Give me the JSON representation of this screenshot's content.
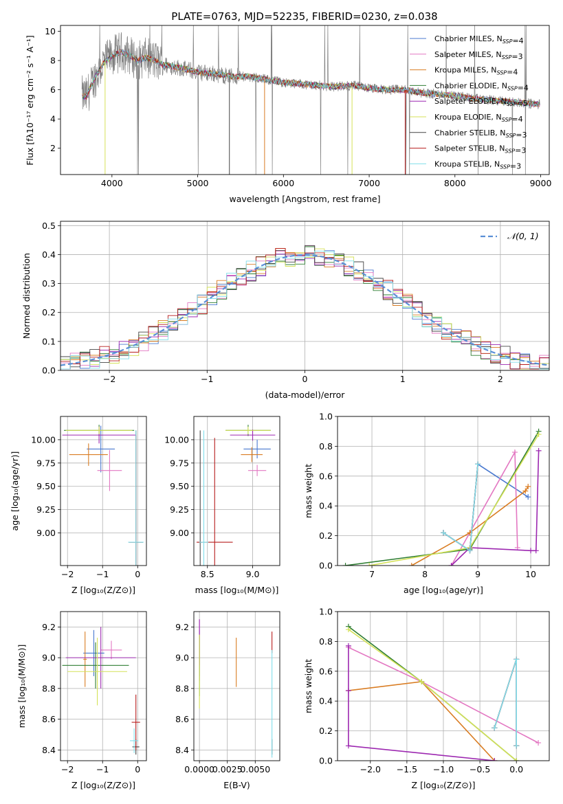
{
  "title": "PLATE=0763, MJD=52235, FIBERID=0230, z=0.038",
  "series": [
    {
      "name": "Chabrier MILES, N$_{SSP}$=4",
      "color": "#4878cf"
    },
    {
      "name": "Salpeter MILES, N$_{SSP}$=3",
      "color": "#e377c2"
    },
    {
      "name": "Kroupa MILES, N$_{SSP}$=4",
      "color": "#d97c22"
    },
    {
      "name": "Chabrier ELODIE, N$_{SSP}$=4",
      "color": "#2e7d32"
    },
    {
      "name": "Salpeter ELODIE, N$_{SSP}$=5",
      "color": "#9c27b0"
    },
    {
      "name": "Kroupa ELODIE, N$_{SSP}$=4",
      "color": "#d4e157"
    },
    {
      "name": "Chabrier STELIB, N$_{SSP}$=3",
      "color": "#444444"
    },
    {
      "name": "Salpeter STELIB, N$_{SSP}$=3",
      "color": "#b71c1c"
    },
    {
      "name": "Kroupa STELIB, N$_{SSP}$=3",
      "color": "#80deea"
    }
  ],
  "chart_data": [
    {
      "type": "line",
      "title": "PLATE=0763, MJD=52235, FIBERID=0230, z=0.038",
      "xlabel": "wavelength [Angstrom, rest frame]",
      "ylabel": "Flux [f_λ 10^-17 erg cm^-2 s^-1 A^-1]",
      "xlim": [
        3400,
        9100
      ],
      "ylim": [
        0.2,
        10.4
      ],
      "xticks": [
        4000,
        5000,
        6000,
        7000,
        8000,
        9000
      ],
      "yticks": [
        2,
        4,
        6,
        8,
        10
      ],
      "grid": false,
      "legend": "top-right",
      "data_color": "#808080",
      "spectrum_x": [
        3650,
        3700,
        3800,
        3900,
        4000,
        4100,
        4200,
        4300,
        4400,
        4500,
        4600,
        4800,
        5000,
        5200,
        5400,
        5600,
        5800,
        6000,
        6200,
        6400,
        6600,
        6800,
        7000,
        7200,
        7400,
        7600,
        7800,
        8000,
        8200,
        8400,
        8600,
        8800,
        9000
      ],
      "spectrum_y": [
        5.6,
        5.5,
        6.8,
        7.8,
        8.3,
        8.6,
        8.4,
        8.0,
        8.2,
        8.0,
        7.7,
        7.5,
        7.2,
        7.1,
        6.9,
        6.9,
        6.7,
        6.5,
        6.4,
        6.3,
        6.2,
        6.3,
        6.1,
        6.0,
        6.0,
        5.8,
        5.7,
        5.6,
        5.4,
        5.3,
        5.2,
        5.1,
        5.0
      ]
    },
    {
      "type": "line",
      "xlabel": "(data-model)/error",
      "ylabel": "Normed distribution",
      "xlim": [
        -2.5,
        2.5
      ],
      "ylim": [
        0,
        0.515
      ],
      "xticks": [
        -2,
        -1,
        0,
        1,
        2
      ],
      "yticks": [
        0.0,
        0.1,
        0.2,
        0.3,
        0.4,
        0.5
      ],
      "grid": true,
      "legend": "top-right",
      "legend_label": "𝒩(0, 1)",
      "normal_color": "#5a8fd6",
      "bin_width": 0.1
    },
    {
      "type": "scatter",
      "xlabel": "Z [log10(Z/Z⊙)]",
      "ylabel": "age [log10(age/yr)]",
      "xlim": [
        -2.2,
        0.25
      ],
      "ylim": [
        8.65,
        10.25
      ],
      "xticks": [
        -2,
        -1,
        0
      ],
      "yticks": [
        9.0,
        9.25,
        9.5,
        9.75,
        10.0
      ],
      "grid": true,
      "points": [
        {
          "s": 0,
          "x": -1.05,
          "y": 9.9,
          "xe": 0.4,
          "ye": 0.25
        },
        {
          "s": 1,
          "x": -0.8,
          "y": 9.67,
          "xe": 0.35,
          "ye": 0.22
        },
        {
          "s": 2,
          "x": -1.4,
          "y": 9.84,
          "xe": 0.55,
          "ye": 0.12
        },
        {
          "s": 3,
          "x": -1.1,
          "y": 10.1,
          "xe": 1.0,
          "ye": 0.06
        },
        {
          "s": 4,
          "x": -1.1,
          "y": 10.05,
          "xe": 1.05,
          "ye": 0.09
        },
        {
          "s": 5,
          "x": -1.1,
          "y": 10.1,
          "xe": 0.95,
          "ye": 0.04
        },
        {
          "s": 6,
          "x": -0.05,
          "y": 8.9,
          "xe": 0.2,
          "ye": 1.2
        },
        {
          "s": 7,
          "x": -0.05,
          "y": 8.9,
          "xe": 0.2,
          "ye": 1.15
        },
        {
          "s": 8,
          "x": -0.05,
          "y": 8.9,
          "xe": 0.22,
          "ye": 1.2
        }
      ]
    },
    {
      "type": "scatter",
      "xlabel": "mass [log10(M/M⊙)]",
      "ylabel": "",
      "xlim": [
        8.35,
        9.3
      ],
      "ylim": [
        8.65,
        10.25
      ],
      "xticks": [
        8.5,
        9.0
      ],
      "yticks": [
        9.0,
        9.25,
        9.5,
        9.75,
        10.0
      ],
      "grid": true,
      "points": [
        {
          "s": 0,
          "x": 9.05,
          "y": 9.9,
          "xe": 0.15,
          "ye": 0.1
        },
        {
          "s": 1,
          "x": 9.05,
          "y": 9.67,
          "xe": 0.1,
          "ye": 0.06
        },
        {
          "s": 2,
          "x": 8.99,
          "y": 9.84,
          "xe": 0.12,
          "ye": 0.08
        },
        {
          "s": 3,
          "x": 8.95,
          "y": 10.1,
          "xe": 0.25,
          "ye": 0.06
        },
        {
          "s": 4,
          "x": 9.0,
          "y": 10.05,
          "xe": 0.25,
          "ye": 0.06
        },
        {
          "s": 5,
          "x": 8.95,
          "y": 10.1,
          "xe": 0.25,
          "ye": 0.04
        },
        {
          "s": 6,
          "x": 8.42,
          "y": 8.9,
          "xe": 0.02,
          "ye": 1.2
        },
        {
          "s": 7,
          "x": 8.58,
          "y": 8.9,
          "xe": 0.2,
          "ye": 1.12
        },
        {
          "s": 8,
          "x": 8.46,
          "y": 8.9,
          "xe": 0.05,
          "ye": 1.2
        }
      ]
    },
    {
      "type": "line",
      "xlabel": "age [log10(age/yr)]",
      "ylabel": "mass weight",
      "xlim": [
        6.35,
        10.35
      ],
      "ylim": [
        0,
        1.0
      ],
      "xticks": [
        7,
        8,
        9,
        10
      ],
      "yticks": [
        0.0,
        0.2,
        0.4,
        0.6,
        0.8,
        1.0
      ],
      "grid": true,
      "series": [
        {
          "s": 0,
          "x": [
            8.35,
            8.85,
            9.0,
            9.95
          ],
          "y": [
            0.22,
            0.1,
            0.68,
            0.46
          ]
        },
        {
          "s": 1,
          "x": [
            8.5,
            9.7,
            9.75
          ],
          "y": [
            0.0,
            0.76,
            0.12
          ]
        },
        {
          "s": 2,
          "x": [
            7.75,
            8.85,
            9.9,
            9.95
          ],
          "y": [
            0.0,
            0.22,
            0.5,
            0.53
          ]
        },
        {
          "s": 3,
          "x": [
            6.5,
            8.85,
            10.15
          ],
          "y": [
            0.0,
            0.11,
            0.9
          ]
        },
        {
          "s": 4,
          "x": [
            8.5,
            8.85,
            10.0,
            10.1,
            10.15
          ],
          "y": [
            0.0,
            0.12,
            0.1,
            0.1,
            0.77
          ]
        },
        {
          "s": 5,
          "x": [
            6.95,
            8.85,
            10.15
          ],
          "y": [
            0.0,
            0.12,
            0.88
          ]
        },
        {
          "s": 6,
          "x": [
            8.35,
            8.85,
            9.0
          ],
          "y": [
            0.22,
            0.1,
            0.68
          ]
        },
        {
          "s": 7,
          "x": [
            8.35,
            8.85,
            9.0
          ],
          "y": [
            0.22,
            0.1,
            0.68
          ]
        },
        {
          "s": 8,
          "x": [
            8.35,
            8.85,
            9.0
          ],
          "y": [
            0.22,
            0.1,
            0.68
          ]
        }
      ]
    },
    {
      "type": "scatter",
      "xlabel": "Z [log10(Z/Z⊙)]",
      "ylabel": "mass [log10(M/M⊙)]",
      "xlim": [
        -2.2,
        0.25
      ],
      "ylim": [
        8.33,
        9.3
      ],
      "xticks": [
        -2,
        -1,
        0
      ],
      "yticks": [
        8.4,
        8.6,
        8.8,
        9.0,
        9.2
      ],
      "grid": true,
      "points": [
        {
          "s": 0,
          "x": -1.25,
          "y": 9.03,
          "xe": 0.3,
          "ye": 0.15
        },
        {
          "s": 1,
          "x": -0.75,
          "y": 9.05,
          "xe": 0.3,
          "ye": 0.06
        },
        {
          "s": 2,
          "x": -1.5,
          "y": 8.99,
          "xe": 0.05,
          "ye": 0.18
        },
        {
          "s": 3,
          "x": -1.2,
          "y": 8.95,
          "xe": 0.95,
          "ye": 0.15
        },
        {
          "s": 4,
          "x": -1.05,
          "y": 9.0,
          "xe": 1.0,
          "ye": 0.2
        },
        {
          "s": 5,
          "x": -1.15,
          "y": 8.91,
          "xe": 0.85,
          "ye": 0.22
        },
        {
          "s": 6,
          "x": -0.05,
          "y": 8.42,
          "xe": 0.1,
          "ye": 0.05
        },
        {
          "s": 7,
          "x": -0.05,
          "y": 8.58,
          "xe": 0.12,
          "ye": 0.18
        },
        {
          "s": 8,
          "x": -0.1,
          "y": 8.46,
          "xe": 0.12,
          "ye": 0.08
        }
      ]
    },
    {
      "type": "scatter",
      "xlabel": "E(B-V)",
      "ylabel": "",
      "xlim": [
        -0.0005,
        0.0072
      ],
      "ylim": [
        8.33,
        9.3
      ],
      "xticks": [
        0.0,
        0.0025,
        0.005
      ],
      "xticklabels": [
        "0.0000",
        "0.0025",
        "0.0050"
      ],
      "yticks": [
        8.4,
        8.6,
        8.8,
        9.0,
        9.2
      ],
      "grid": true,
      "points": [
        {
          "s": 0,
          "x": 0.0,
          "y": 9.03,
          "xe": 0,
          "ye": 0.15
        },
        {
          "s": 1,
          "x": 0.0,
          "y": 9.05,
          "xe": 0,
          "ye": 0.2
        },
        {
          "s": 2,
          "x": 0.0033,
          "y": 8.97,
          "xe": 0,
          "ye": 0.16
        },
        {
          "s": 3,
          "x": 0.0,
          "y": 8.95,
          "xe": 0,
          "ye": 0.2
        },
        {
          "s": 4,
          "x": 0.0,
          "y": 9.1,
          "xe": 0,
          "ye": 0.15
        },
        {
          "s": 5,
          "x": 0.0,
          "y": 8.91,
          "xe": 0,
          "ye": 0.24
        },
        {
          "s": 6,
          "x": 0.0065,
          "y": 8.42,
          "xe": 0,
          "ye": 0.05
        },
        {
          "s": 7,
          "x": 0.0065,
          "y": 9.1,
          "xe": 0,
          "ye": 0.07
        },
        {
          "s": 8,
          "x": 0.0065,
          "y": 8.7,
          "xe": 0,
          "ye": 0.35
        }
      ]
    },
    {
      "type": "line",
      "xlabel": "Z [log10(Z/Z⊙)]",
      "ylabel": "mass weight",
      "xlim": [
        -2.45,
        0.45
      ],
      "ylim": [
        0,
        1.0
      ],
      "xticks": [
        -2.0,
        -1.5,
        -1.0,
        -0.5,
        0.0
      ],
      "yticks": [
        0.0,
        0.2,
        0.4,
        0.6,
        0.8,
        1.0
      ],
      "grid": true,
      "series": [
        {
          "s": 0,
          "x": [
            -0.3,
            0.0,
            0.0
          ],
          "y": [
            0.22,
            0.68,
            0.1
          ]
        },
        {
          "s": 1,
          "x": [
            -2.3,
            -1.3,
            0.3
          ],
          "y": [
            0.76,
            0.53,
            0.12
          ]
        },
        {
          "s": 2,
          "x": [
            -2.3,
            -1.3,
            -0.3
          ],
          "y": [
            0.47,
            0.53,
            0.0
          ]
        },
        {
          "s": 3,
          "x": [
            -2.3,
            -1.3,
            0.0
          ],
          "y": [
            0.9,
            0.53,
            0.0
          ]
        },
        {
          "s": 4,
          "x": [
            -0.3,
            -2.3,
            -2.3,
            -2.3
          ],
          "y": [
            0.0,
            0.1,
            0.47,
            0.77
          ]
        },
        {
          "s": 5,
          "x": [
            -2.3,
            -1.3,
            0.0
          ],
          "y": [
            0.88,
            0.53,
            0.0
          ]
        },
        {
          "s": 6,
          "x": [
            -0.3,
            0.0,
            0.0
          ],
          "y": [
            0.22,
            0.68,
            0.1
          ]
        },
        {
          "s": 7,
          "x": [
            -0.3,
            0.0,
            0.0
          ],
          "y": [
            0.22,
            0.68,
            0.1
          ]
        },
        {
          "s": 8,
          "x": [
            -0.3,
            0.0,
            0.0
          ],
          "y": [
            0.22,
            0.68,
            0.1
          ]
        }
      ]
    }
  ]
}
